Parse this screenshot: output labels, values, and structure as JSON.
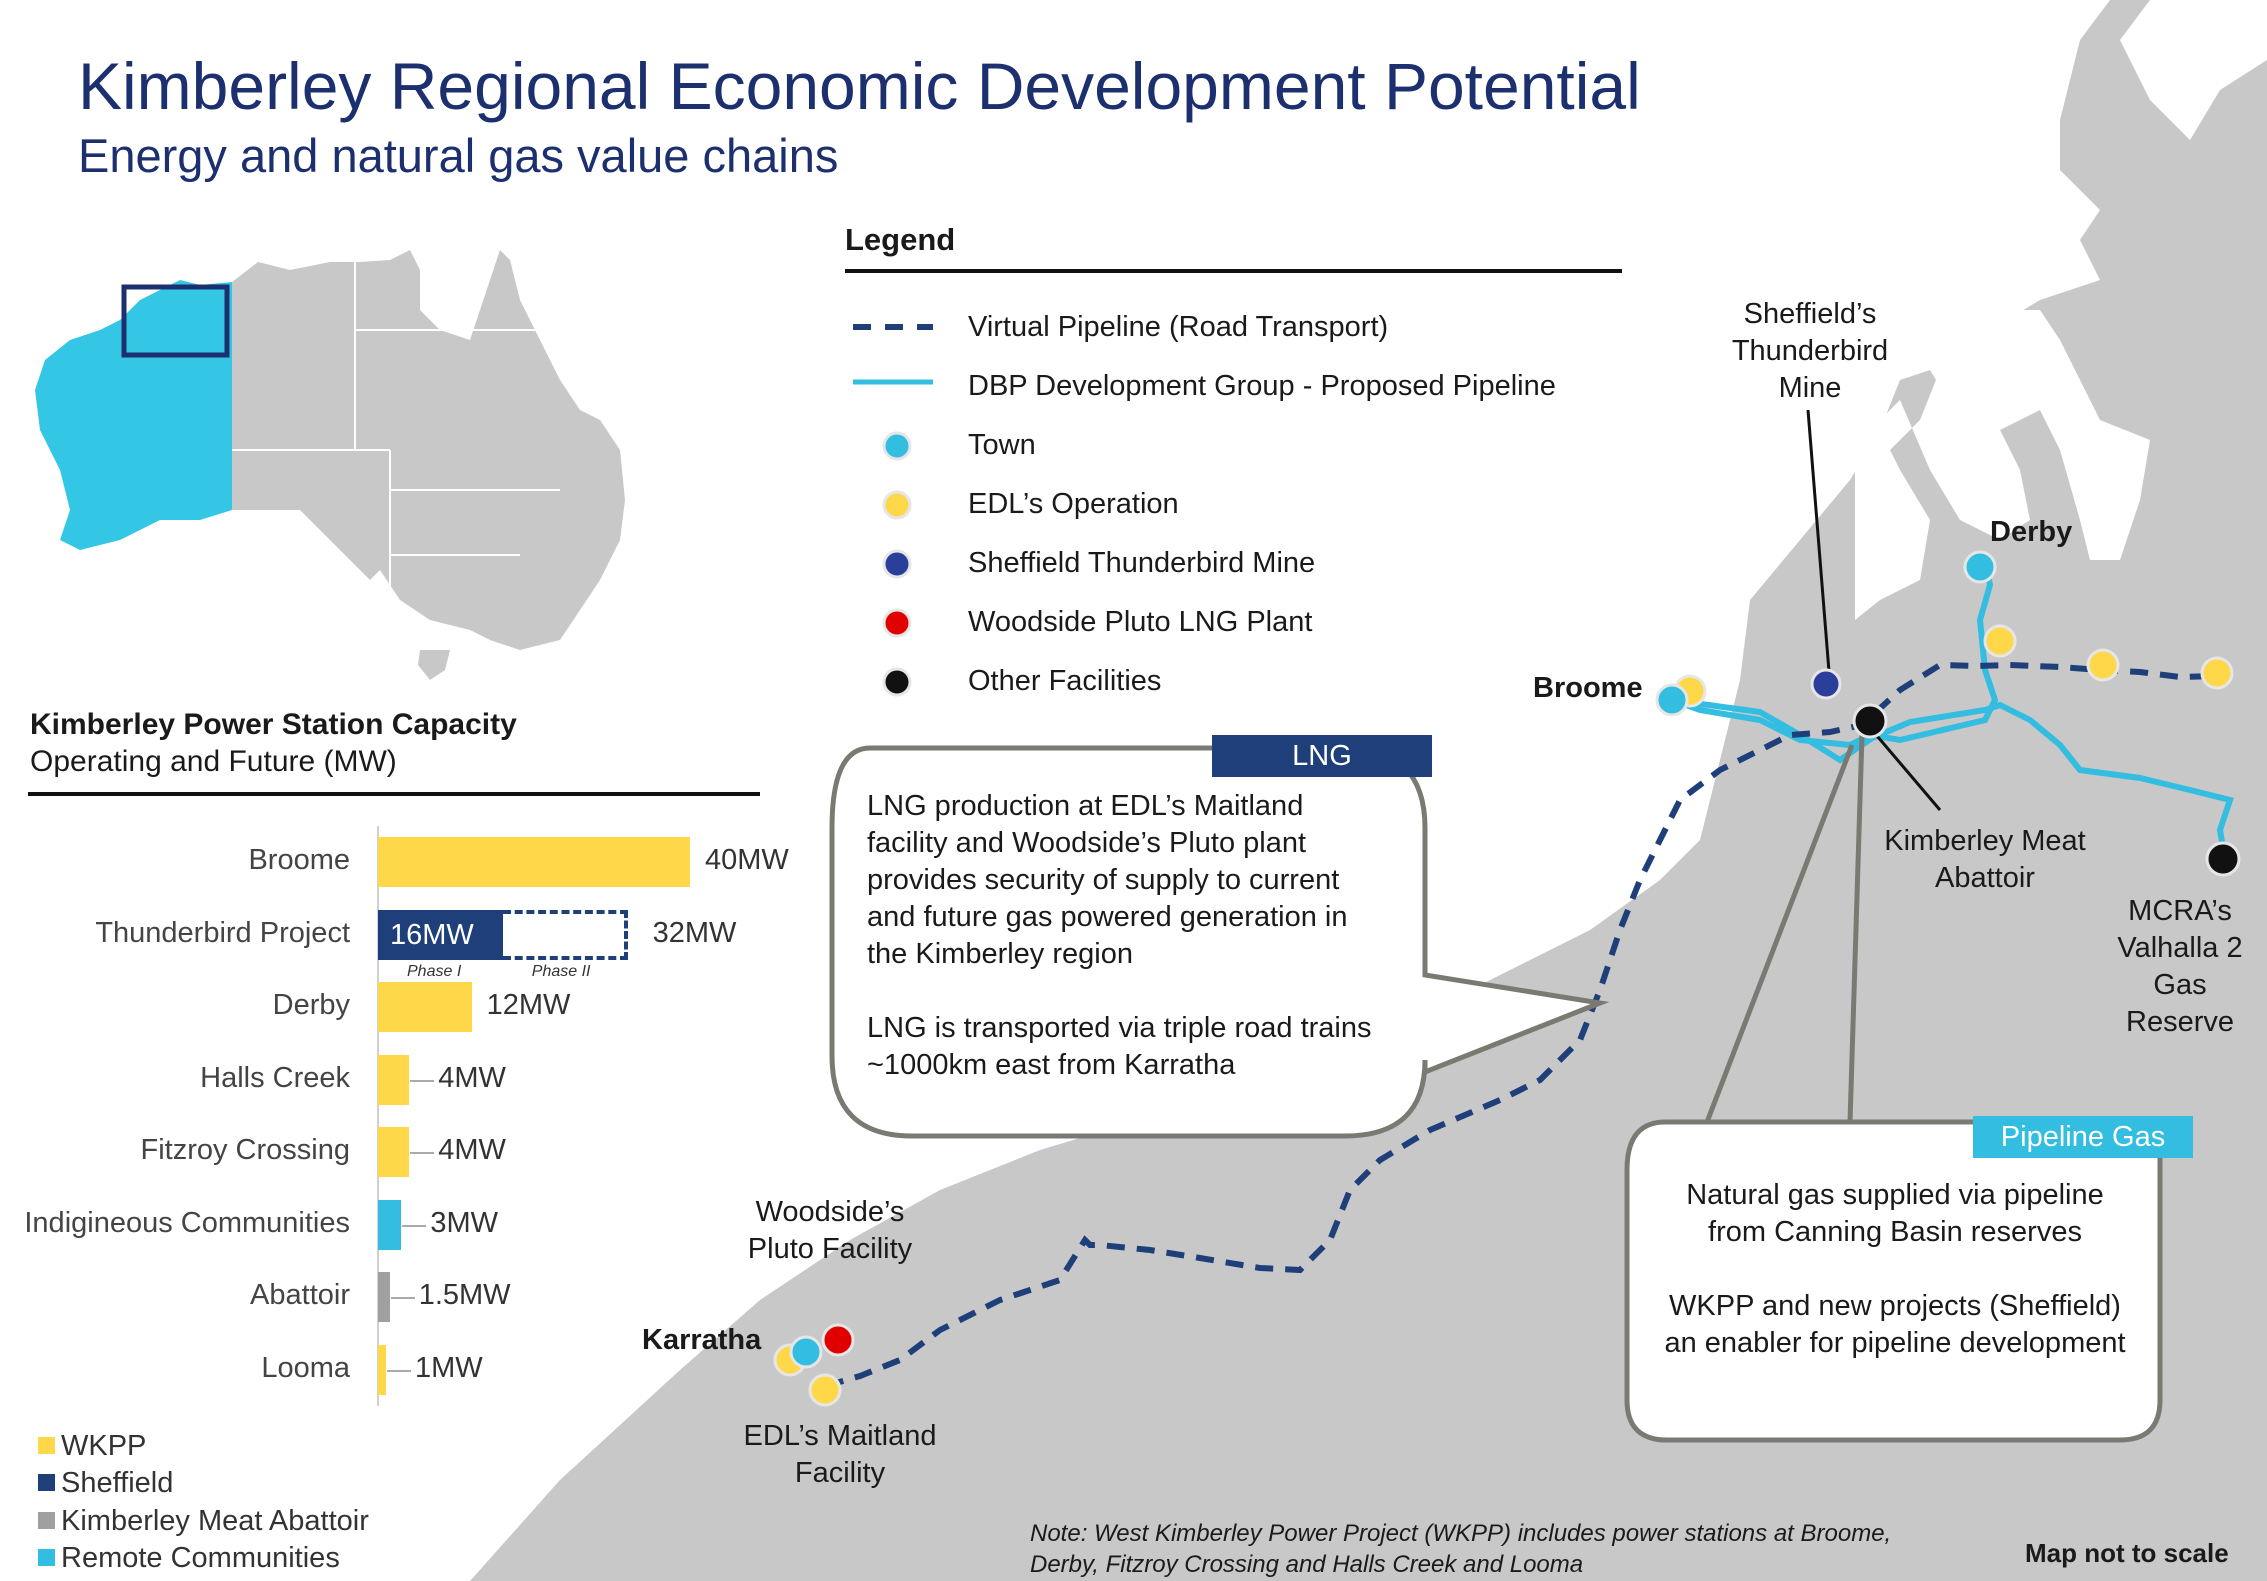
{
  "title": "Kimberley Regional Economic Development Potential",
  "subtitle": "Energy and natural gas value chains",
  "legend": {
    "title": "Legend",
    "items": [
      {
        "label": "Virtual Pipeline (Road Transport)",
        "icon": "dashed-line-icon",
        "color": "#1f3f7a"
      },
      {
        "label": "DBP Development Group - Proposed Pipeline",
        "icon": "solid-line-icon",
        "color": "#33bde0"
      },
      {
        "label": "Town",
        "icon": "town-marker-icon",
        "color": "#33bde0"
      },
      {
        "label": "EDL’s Operation",
        "icon": "edl-marker-icon",
        "color": "#ffd84a"
      },
      {
        "label": "Sheffield Thunderbird Mine",
        "icon": "sheffield-marker-icon",
        "color": "#2a3f9a"
      },
      {
        "label": "Woodside Pluto LNG Plant",
        "icon": "woodside-marker-icon",
        "color": "#e00000"
      },
      {
        "label": "Other Facilities",
        "icon": "facility-marker-icon",
        "color": "#111111"
      }
    ]
  },
  "map_labels": {
    "sheffield_mine": [
      "Sheffield’s",
      "Thunderbird",
      "Mine"
    ],
    "derby": "Derby",
    "broome": "Broome",
    "abattoir": [
      "Kimberley Meat",
      "Abattoir"
    ],
    "mcra": [
      "MCRA’s",
      "Valhalla 2",
      "Gas",
      "Reserve"
    ],
    "woodside_pluto": [
      "Woodside’s",
      "Pluto Facility"
    ],
    "karratha": "Karratha",
    "edl_maitland": [
      "EDL’s Maitland",
      "Facility"
    ]
  },
  "lng_callout": {
    "tag": "LNG",
    "lines": [
      "LNG production at EDL’s Maitland",
      "facility and Woodside’s Pluto plant",
      "provides security of supply to current",
      "and future gas powered generation in",
      "the Kimberley region",
      "",
      "LNG is transported via triple road trains",
      "~1000km east from Karratha"
    ]
  },
  "pipeline_callout": {
    "tag": "Pipeline Gas",
    "lines": [
      "Natural gas supplied via pipeline",
      "from Canning Basin reserves",
      "",
      "WKPP and new projects (Sheffield)",
      "an enabler for pipeline development"
    ]
  },
  "capacity": {
    "title": "Kimberley Power Station Capacity",
    "subtitle": "Operating and Future (MW)",
    "phase_labels": [
      "Phase I",
      "Phase II"
    ],
    "series_keys": [
      {
        "label": "WKPP",
        "color": "#ffd84a"
      },
      {
        "label": "Sheffield",
        "color": "#1f3f7a"
      },
      {
        "label": "Kimberley Meat Abattoir",
        "color": "#a0a0a0"
      },
      {
        "label": "Remote Communities",
        "color": "#33bde0"
      }
    ]
  },
  "chart_data": {
    "type": "bar",
    "orientation": "horizontal",
    "title": "Kimberley Power Station Capacity",
    "subtitle": "Operating and Future (MW)",
    "categories": [
      "Broome",
      "Thunderbird Project",
      "Derby",
      "Halls Creek",
      "Fitzroy Crossing",
      "Indigineous Communities",
      "Abattoir",
      "Looma"
    ],
    "values": [
      40,
      16,
      12,
      4,
      4,
      3,
      1.5,
      1
    ],
    "value_labels": [
      "40MW",
      "16MW",
      "12MW",
      "4MW",
      "4MW",
      "3MW",
      "1.5MW",
      "1MW"
    ],
    "series_of_category": [
      "WKPP",
      "Sheffield",
      "WKPP",
      "WKPP",
      "WKPP",
      "Remote Communities",
      "Kimberley Meat Abattoir",
      "WKPP"
    ],
    "future": {
      "category": "Thunderbird Project",
      "value": 32,
      "label": "32MW"
    },
    "series": [
      {
        "name": "WKPP",
        "color": "#ffd84a"
      },
      {
        "name": "Sheffield",
        "color": "#1f3f7a"
      },
      {
        "name": "Kimberley Meat Abattoir",
        "color": "#a0a0a0"
      },
      {
        "name": "Remote Communities",
        "color": "#33bde0"
      }
    ],
    "legend_position": "bottom-left",
    "grid": false
  },
  "note": "Note: West Kimberley Power Project (WKPP) includes power stations at Broome, Derby, Fitzroy Crossing and Halls Creek and Looma",
  "scale_note": "Map not to scale"
}
